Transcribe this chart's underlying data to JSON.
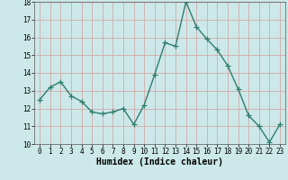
{
  "x": [
    0,
    1,
    2,
    3,
    4,
    5,
    6,
    7,
    8,
    9,
    10,
    11,
    12,
    13,
    14,
    15,
    16,
    17,
    18,
    19,
    20,
    21,
    22,
    23
  ],
  "y": [
    12.5,
    13.2,
    13.5,
    12.7,
    12.4,
    11.8,
    11.7,
    11.8,
    12.0,
    11.1,
    12.2,
    13.9,
    15.7,
    15.5,
    18.0,
    16.6,
    15.9,
    15.3,
    14.4,
    13.1,
    11.6,
    11.0,
    10.1,
    11.1
  ],
  "xlabel": "Humidex (Indice chaleur)",
  "ylim": [
    10,
    18
  ],
  "xlim_min": -0.5,
  "xlim_max": 23.5,
  "yticks": [
    10,
    11,
    12,
    13,
    14,
    15,
    16,
    17,
    18
  ],
  "xticks": [
    0,
    1,
    2,
    3,
    4,
    5,
    6,
    7,
    8,
    9,
    10,
    11,
    12,
    13,
    14,
    15,
    16,
    17,
    18,
    19,
    20,
    21,
    22,
    23
  ],
  "xtick_labels": [
    "0",
    "1",
    "2",
    "3",
    "4",
    "5",
    "6",
    "7",
    "8",
    "9",
    "10",
    "11",
    "12",
    "13",
    "14",
    "15",
    "16",
    "17",
    "18",
    "19",
    "20",
    "21",
    "22",
    "23"
  ],
  "line_color": "#2e7d6e",
  "marker": "+",
  "bg_color": "#cce8e8",
  "grid_color": "#d4a0a0",
  "line_width": 1.0,
  "marker_size": 4,
  "tick_fontsize": 5.5,
  "xlabel_fontsize": 7
}
